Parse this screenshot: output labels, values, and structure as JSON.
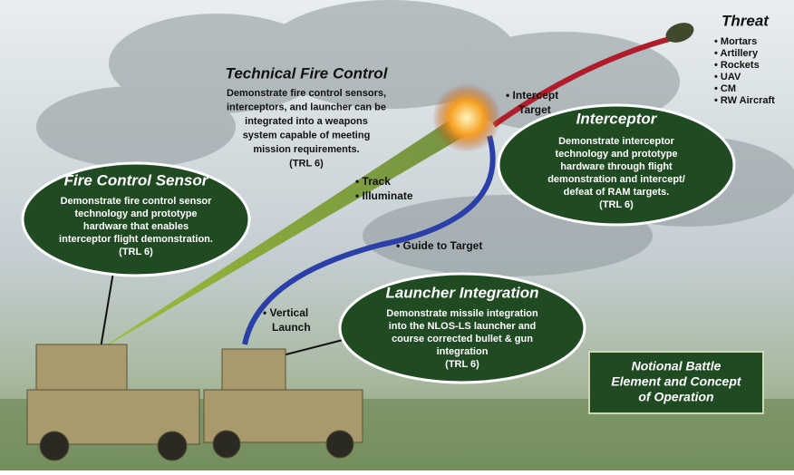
{
  "technical_fire_control": {
    "title": "Technical Fire Control",
    "lines": [
      "Demonstrate fire control sensors,",
      "interceptors, and launcher can be",
      "integrated into a weapons",
      "system capable of meeting",
      "mission requirements.",
      "(TRL 6)"
    ]
  },
  "callouts": [
    {
      "title": "Fire Control Sensor",
      "lines": [
        "Demonstrate fire control sensor",
        "technology and prototype",
        "hardware that enables",
        "interceptor flight demonstration.",
        "(TRL 6)"
      ]
    },
    {
      "title": "Interceptor",
      "lines": [
        "Demonstrate interceptor",
        "technology and prototype",
        "hardware through flight",
        "demonstration and intercept/",
        "defeat of RAM targets.",
        "(TRL 6)"
      ]
    },
    {
      "title": "Launcher Integration",
      "lines": [
        "Demonstrate missile integration",
        "into the NLOS-LS launcher and",
        "course corrected bullet & gun",
        "integration",
        "(TRL 6)"
      ]
    }
  ],
  "threat": {
    "title": "Threat",
    "items": [
      "• Mortars",
      "• Artillery",
      "• Rockets",
      "• UAV",
      "• CM",
      "• RW Aircraft"
    ]
  },
  "labels": [
    {
      "lines": [
        "• Intercept",
        "Target"
      ]
    },
    {
      "lines": [
        "• Track",
        "• Illuminate"
      ]
    },
    {
      "lines": [
        "• Guide to Target"
      ]
    },
    {
      "lines": [
        "• Vertical",
        "Launch"
      ]
    }
  ],
  "caption": {
    "lines": [
      "Notional Battle",
      "Element and Concept",
      "of Operation"
    ]
  }
}
